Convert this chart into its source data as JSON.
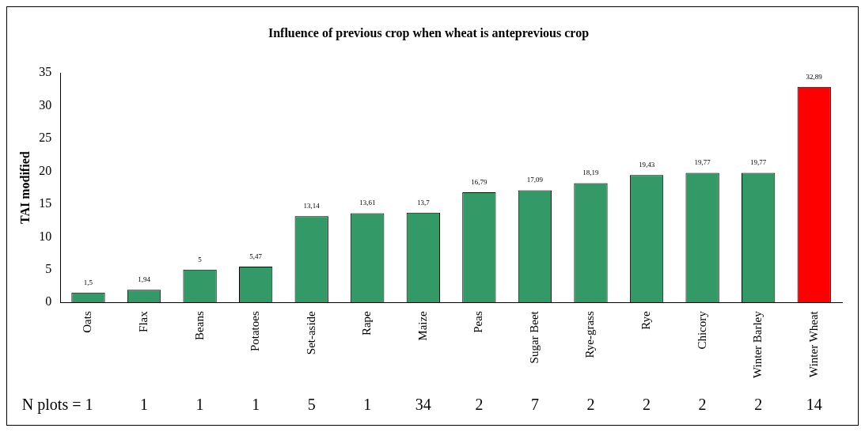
{
  "chart_data": {
    "type": "bar",
    "title": "Influence of previous crop when wheat is anteprevious crop",
    "ylabel": "TAI modified",
    "categories": [
      "Oats",
      "Flax",
      "Beans",
      "Potatoes",
      "Set-aside",
      "Rape",
      "Maize",
      "Peas",
      "Sugar Beet",
      "Rye-grass",
      "Rye",
      "Chicory",
      "Winter Barley",
      "Winter Wheat"
    ],
    "values": [
      1.5,
      1.94,
      5,
      5.47,
      13.14,
      13.61,
      13.7,
      16.79,
      17.09,
      18.19,
      19.43,
      19.77,
      19.77,
      32.89
    ],
    "value_labels": [
      "1,5",
      "1,94",
      "5",
      "5,47",
      "13,14",
      "13,61",
      "13,7",
      "16,79",
      "17,09",
      "18,19",
      "19,43",
      "19,77",
      "19,77",
      "32,89"
    ],
    "colors": [
      "#339966",
      "#339966",
      "#339966",
      "#339966",
      "#339966",
      "#339966",
      "#339966",
      "#339966",
      "#339966",
      "#339966",
      "#339966",
      "#339966",
      "#339966",
      "#ff0000"
    ],
    "ylim": [
      0,
      35
    ],
    "yticks": [
      0,
      5,
      10,
      15,
      20,
      25,
      30,
      35
    ],
    "grid": false,
    "legend": false,
    "annotations": [
      "N plots = 1",
      "1",
      "1",
      "1",
      "5",
      "1",
      "34",
      "2",
      "7",
      "2",
      "2",
      "2",
      "2",
      "14"
    ]
  }
}
